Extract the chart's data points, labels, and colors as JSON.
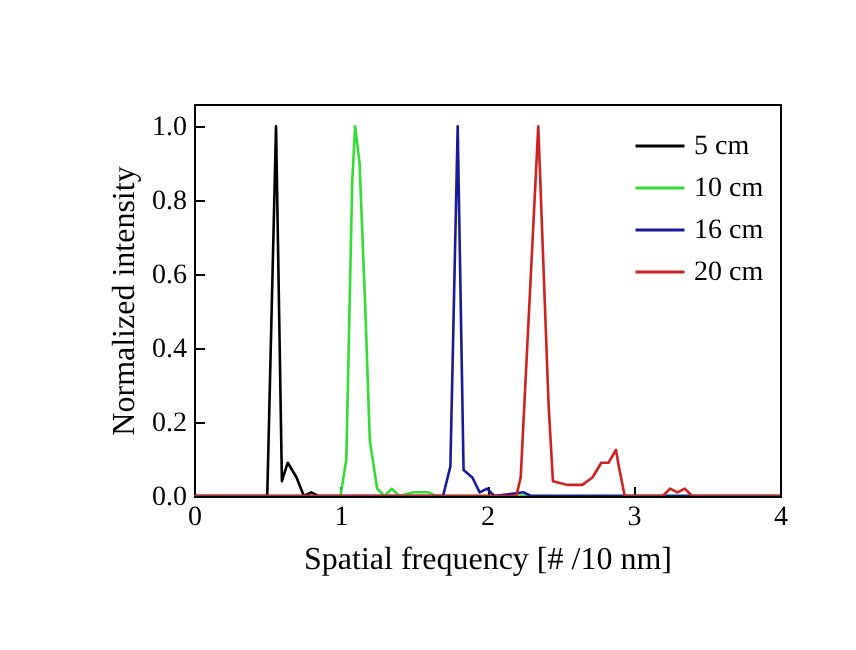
{
  "chart_data": {
    "type": "line",
    "xlabel": "Spatial frequency [# /10 nm]",
    "ylabel": "Normalized intensity",
    "xlim": [
      0,
      4
    ],
    "xticks": [
      0,
      1,
      2,
      3,
      4
    ],
    "ylim": [
      0,
      1.06
    ],
    "yticks": [
      {
        "value": 0,
        "label": "0.0"
      },
      {
        "value": 0.2,
        "label": "0.2"
      },
      {
        "value": 0.4,
        "label": "0.4"
      },
      {
        "value": 0.6,
        "label": "0.6"
      },
      {
        "value": 0.8,
        "label": "0.8"
      },
      {
        "value": 1,
        "label": "1.0"
      }
    ],
    "grid": false,
    "legend": "top right",
    "line_style": "solid",
    "marker": "none",
    "series": [
      {
        "name": "5 cm",
        "color": "#000000",
        "x": [
          0,
          0.5,
          0.56,
          0.6,
          0.64,
          0.7,
          0.75,
          0.8,
          0.85,
          4
        ],
        "values": [
          0,
          0,
          1.0,
          0.04,
          0.09,
          0.05,
          0,
          0.01,
          0,
          0
        ]
      },
      {
        "name": "10 cm",
        "color": "#33dd33",
        "x": [
          0,
          1.0,
          1.04,
          1.08,
          1.1,
          1.13,
          1.17,
          1.2,
          1.25,
          1.3,
          1.35,
          1.4,
          1.5,
          1.6,
          1.65,
          4
        ],
        "values": [
          0,
          0,
          0.1,
          0.85,
          1.0,
          0.9,
          0.5,
          0.15,
          0.02,
          0,
          0.02,
          0,
          0.01,
          0.01,
          0,
          0
        ]
      },
      {
        "name": "16 cm",
        "color": "#1a1a99",
        "x": [
          0,
          1.7,
          1.75,
          1.8,
          1.84,
          1.9,
          1.95,
          2.0,
          2.05,
          2.25,
          2.3,
          4
        ],
        "values": [
          0,
          0,
          0.08,
          1.0,
          0.07,
          0.05,
          0.01,
          0.02,
          0,
          0.01,
          0,
          0
        ]
      },
      {
        "name": "20 cm",
        "color": "#cc2222",
        "x": [
          0,
          2.2,
          2.23,
          2.35,
          2.42,
          2.45,
          2.55,
          2.65,
          2.72,
          2.78,
          2.83,
          2.88,
          2.9,
          2.94,
          3.2,
          3.25,
          3.3,
          3.35,
          3.4,
          4
        ],
        "values": [
          0,
          0,
          0.05,
          1.0,
          0.25,
          0.04,
          0.03,
          0.03,
          0.05,
          0.09,
          0.09,
          0.125,
          0.08,
          0,
          0,
          0.02,
          0.01,
          0.02,
          0,
          0
        ]
      }
    ]
  }
}
